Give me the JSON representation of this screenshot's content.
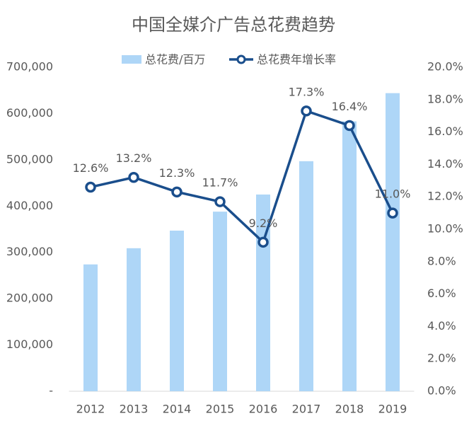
{
  "chart_data": {
    "type": "bar-line",
    "title": "中国全媒介广告总花费趋势",
    "categories": [
      "2012",
      "2013",
      "2014",
      "2015",
      "2016",
      "2017",
      "2018",
      "2019"
    ],
    "series": [
      {
        "name": "总花费/百万",
        "type": "bar",
        "color": "#aed6f7",
        "values": [
          274000,
          309000,
          347000,
          388000,
          425000,
          497000,
          583000,
          644000
        ]
      },
      {
        "name": "总花费年增长率",
        "type": "line",
        "axis": "y2",
        "color": "#1a4e8c",
        "values": [
          12.6,
          13.2,
          12.3,
          11.7,
          9.2,
          17.3,
          16.4,
          11.0
        ],
        "value_labels": [
          "12.6%",
          "13.2%",
          "12.3%",
          "11.7%",
          "9.2%",
          "17.3%",
          "16.4%",
          "11.0%"
        ]
      }
    ],
    "ylim": [
      0,
      700000
    ],
    "yticks": [
      {
        "value": 0,
        "label": "-"
      },
      {
        "value": 100000,
        "label": "100,000"
      },
      {
        "value": 200000,
        "label": "200,000"
      },
      {
        "value": 300000,
        "label": "300,000"
      },
      {
        "value": 400000,
        "label": "400,000"
      },
      {
        "value": 500000,
        "label": "500,000"
      },
      {
        "value": 600000,
        "label": "600,000"
      },
      {
        "value": 700000,
        "label": "700,000"
      }
    ],
    "y2lim": [
      0,
      20
    ],
    "y2ticks": [
      {
        "value": 0,
        "label": "0.0%"
      },
      {
        "value": 2,
        "label": "2.0%"
      },
      {
        "value": 4,
        "label": "4.0%"
      },
      {
        "value": 6,
        "label": "6.0%"
      },
      {
        "value": 8,
        "label": "8.0%"
      },
      {
        "value": 10,
        "label": "10.0%"
      },
      {
        "value": 12,
        "label": "12.0%"
      },
      {
        "value": 14,
        "label": "14.0%"
      },
      {
        "value": 16,
        "label": "16.0%"
      },
      {
        "value": 18,
        "label": "18.0%"
      },
      {
        "value": 20,
        "label": "20.0%"
      }
    ],
    "grid": false
  }
}
